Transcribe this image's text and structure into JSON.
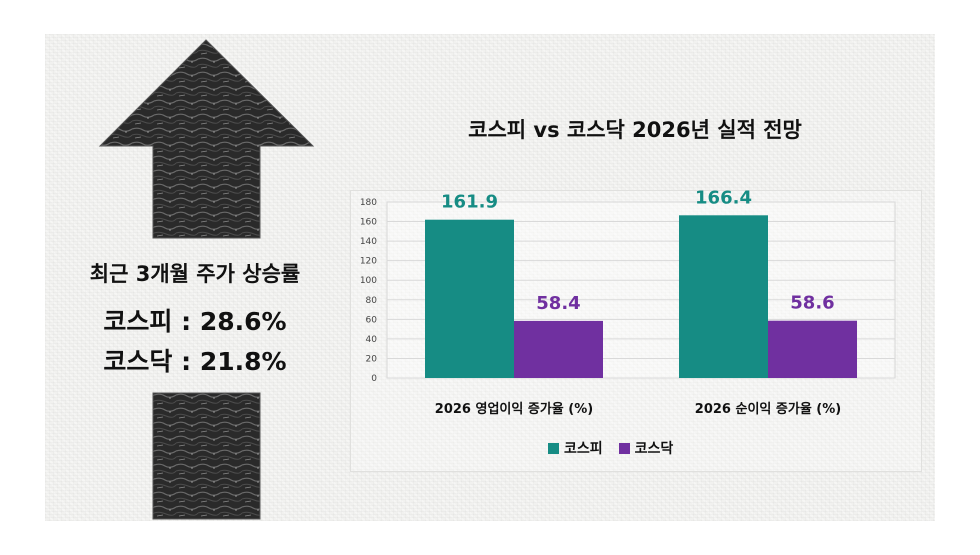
{
  "left_panel": {
    "heading": "최근 3개월 주가 상승률",
    "kospi_line": "코스피 : 28.6%",
    "kosdaq_line": "코스닥 : 21.8%"
  },
  "colors": {
    "kospi": "#168c84",
    "kosdaq": "#7030a0",
    "kospi_label": "#168c84",
    "kosdaq_label": "#7030a0"
  },
  "chart_data": {
    "type": "bar",
    "title": "코스피 vs 코스닥 2026년 실적 전망",
    "categories": [
      "2026 영업이익 증가율 (%)",
      "2026 순이익 증가율 (%)"
    ],
    "series": [
      {
        "name": "코스피",
        "values": [
          161.9,
          166.4
        ]
      },
      {
        "name": "코스닥",
        "values": [
          58.4,
          58.6
        ]
      }
    ],
    "data_labels": [
      [
        "161.9",
        "166.4"
      ],
      [
        "58.4",
        "58.6"
      ]
    ],
    "ylim": [
      0,
      180
    ],
    "yticks": [
      0,
      20,
      40,
      60,
      80,
      100,
      120,
      140,
      160,
      180
    ],
    "grid": true,
    "legend": "bottom"
  }
}
